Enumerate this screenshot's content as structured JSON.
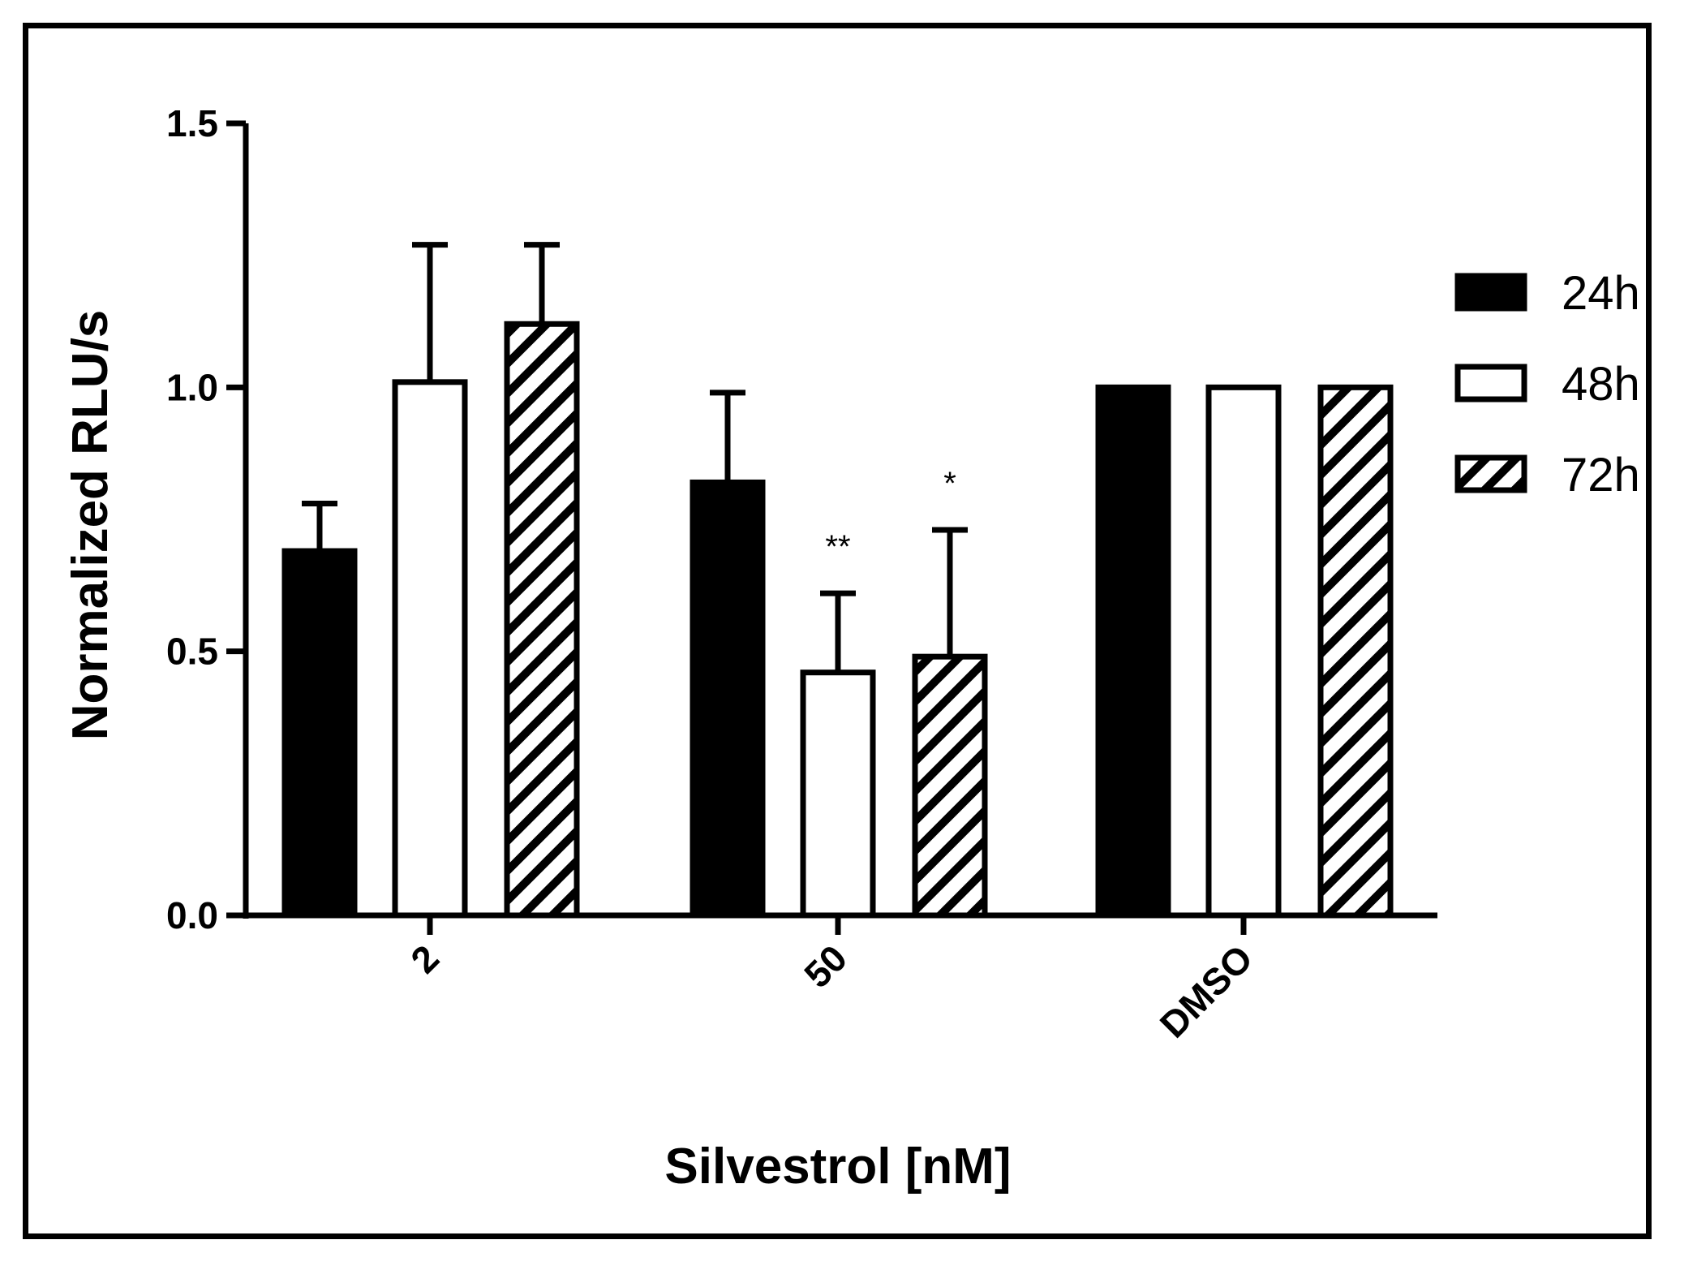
{
  "chart_data": {
    "type": "bar",
    "xlabel": "Silvestrol [nM]",
    "ylabel": "Normalized RLU/s",
    "ylim": [
      0,
      1.5
    ],
    "yticks": [
      "0.0",
      "0.5",
      "1.0",
      "1.5"
    ],
    "ytick_values": [
      0,
      0.5,
      1.0,
      1.5
    ],
    "categories": [
      "2",
      "50",
      "DMSO"
    ],
    "legend_position": "right",
    "series": [
      {
        "name": "24h",
        "fill": "solid",
        "color": "#000000",
        "values": [
          0.69,
          0.82,
          1.0
        ],
        "errors": [
          0.09,
          0.17,
          null
        ],
        "annotations": [
          "",
          "",
          ""
        ]
      },
      {
        "name": "48h",
        "fill": "open",
        "color": "#ffffff",
        "values": [
          1.01,
          0.46,
          1.0
        ],
        "errors": [
          0.26,
          0.15,
          null
        ],
        "annotations": [
          "",
          "**",
          ""
        ]
      },
      {
        "name": "72h",
        "fill": "hatched",
        "color": "#ffffff",
        "values": [
          1.12,
          0.49,
          1.0
        ],
        "errors": [
          0.15,
          0.24,
          null
        ],
        "annotations": [
          "",
          "*",
          ""
        ]
      }
    ]
  }
}
